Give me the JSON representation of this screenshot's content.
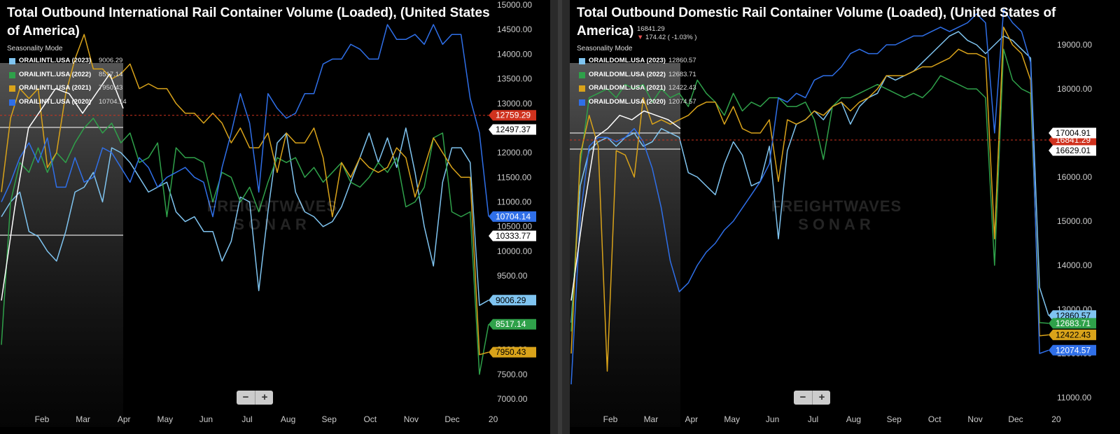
{
  "chart_data": [
    {
      "type": "line",
      "title": "Total Outbound International Rail Container Volume (Loaded), (United States of America)",
      "mode_label": "Seasonality Mode",
      "x_ticks": [
        "Feb",
        "Mar",
        "Apr",
        "May",
        "Jun",
        "Jul",
        "Aug",
        "Sep",
        "Oct",
        "Nov",
        "Dec",
        "20"
      ],
      "y_ticks": [
        "7000.00",
        "7500.00",
        "8000.00",
        "8500.00",
        "9000.00",
        "9500.00",
        "10000.00",
        "10500.00",
        "11000.00",
        "11500.00",
        "12000.00",
        "12500.00",
        "13000.00",
        "13500.00",
        "14000.00",
        "14500.00",
        "15000.00"
      ],
      "ylim": [
        7000,
        15000
      ],
      "series": [
        {
          "name": "ORAILINTL.USA (2023)",
          "value": "9006.29",
          "color": "#7fc4f0",
          "tag": "9006.29",
          "values": [
            10700,
            11000,
            11200,
            10400,
            10300,
            10000,
            9800,
            10400,
            11200,
            11300,
            11600,
            11000,
            12100,
            12000,
            11800,
            11500,
            11200,
            11300,
            11400,
            10800,
            10600,
            10700,
            10400,
            10400,
            9800,
            10200,
            11100,
            11000,
            9200,
            10800,
            12200,
            12400,
            11200,
            10800,
            10700,
            10500,
            10600,
            10900,
            11400,
            11900,
            12400,
            11800,
            12300,
            11700,
            12500,
            11600,
            10500,
            9700,
            11400,
            12100,
            12100,
            11800,
            8900,
            9006
          ]
        },
        {
          "name": "ORAILINTL.USA (2022)",
          "value": "8517.14",
          "color": "#2fa14a",
          "tag": "8517.14",
          "values": [
            8100,
            11000,
            11800,
            11600,
            12100,
            11600,
            12000,
            11800,
            12200,
            12500,
            12700,
            12400,
            12600,
            12200,
            12400,
            11800,
            11900,
            12200,
            10700,
            12100,
            11900,
            11900,
            11800,
            11000,
            11600,
            11500,
            11000,
            11300,
            10800,
            11400,
            11900,
            11800,
            11900,
            11500,
            11700,
            11400,
            11600,
            11800,
            11400,
            11300,
            11500,
            11800,
            11600,
            11900,
            10900,
            11000,
            11300,
            12300,
            12400,
            10800,
            10700,
            10800,
            7500,
            8517
          ]
        },
        {
          "name": "ORAILINTL.USA (2021)",
          "value": "7950.43",
          "color": "#d9a31a",
          "tag": "7950.43",
          "values": [
            11200,
            12700,
            13300,
            13100,
            13300,
            11700,
            12000,
            13200,
            13900,
            14400,
            13700,
            13700,
            13500,
            13600,
            13800,
            13300,
            13400,
            13300,
            13300,
            13000,
            12800,
            12800,
            12600,
            12800,
            12600,
            12200,
            12500,
            12100,
            12100,
            12400,
            11600,
            12400,
            12200,
            12200,
            12500,
            11900,
            10700,
            11800,
            11500,
            11900,
            11700,
            11600,
            11700,
            12100,
            11900,
            11100,
            11700,
            12300,
            12000,
            11700,
            11500,
            11500,
            7900,
            7950
          ]
        },
        {
          "name": "ORAILINTL.USA (2020)",
          "value": "10704.14",
          "color": "#2f6fe8",
          "tag": "10704.14",
          "values": [
            11000,
            11400,
            11900,
            12200,
            11800,
            12300,
            11300,
            11300,
            11900,
            11400,
            11500,
            12100,
            12000,
            11700,
            11400,
            11900,
            11700,
            11300,
            11500,
            11600,
            11700,
            11500,
            11400,
            10700,
            11700,
            12400,
            13200,
            12600,
            11200,
            13200,
            12900,
            12700,
            12800,
            13200,
            13200,
            13800,
            13900,
            13900,
            14200,
            14100,
            13900,
            13900,
            14600,
            14300,
            14300,
            14400,
            14200,
            14600,
            14200,
            14400,
            14400,
            13100,
            12400,
            10704
          ]
        },
        {
          "name": "",
          "value": "",
          "color": "#ffffff",
          "tag": "",
          "values": [
            9000,
            10900,
            12500,
            12900,
            13300,
            13200,
            12800,
            13200,
            13600,
            12900
          ]
        }
      ],
      "ref_line": {
        "value": "12759.29",
        "color": "#d0321e"
      },
      "extra_tags": [
        {
          "value": "12497.37"
        },
        {
          "value": "10333.77"
        }
      ],
      "watermark": [
        "FREIGHTWAVES",
        "SONAR"
      ]
    },
    {
      "type": "line",
      "title": "Total Outbound Domestic Rail Container Volume (Loaded), (United States of America)",
      "ticker": {
        "value": "16841.29",
        "change": "174.42 ( -1.03% )"
      },
      "mode_label": "Seasonality Mode",
      "x_ticks": [
        "Feb",
        "Mar",
        "Apr",
        "May",
        "Jun",
        "Jul",
        "Aug",
        "Sep",
        "Oct",
        "Nov",
        "Dec",
        "20"
      ],
      "y_ticks": [
        "11000.00",
        "12000.00",
        "13000.00",
        "14000.00",
        "15000.00",
        "16000.00",
        "17000.00",
        "18000.00",
        "19000.00"
      ],
      "ylim": [
        10800,
        19800
      ],
      "series": [
        {
          "name": "ORAILDOML.USA (2023)",
          "value": "12860.57",
          "color": "#7fc4f0",
          "tag": "12860.57",
          "values": [
            12700,
            15800,
            16600,
            16800,
            16900,
            16700,
            16900,
            17000,
            16700,
            16800,
            17100,
            17000,
            16900,
            16100,
            16000,
            15800,
            15600,
            16300,
            16800,
            16500,
            15800,
            15900,
            16700,
            14600,
            16600,
            17200,
            17300,
            17500,
            17300,
            17600,
            17700,
            17200,
            17600,
            17800,
            17900,
            18300,
            18200,
            18300,
            18400,
            18600,
            18800,
            19000,
            19200,
            19300,
            19100,
            19000,
            18800,
            19000,
            19200,
            19100,
            18900,
            18700,
            13500,
            12861
          ]
        },
        {
          "name": "ORAILDOML.USA (2022)",
          "value": "12683.71",
          "color": "#2fa14a",
          "tag": "12683.71",
          "values": [
            12500,
            16300,
            17800,
            17900,
            18000,
            17800,
            18100,
            18000,
            18100,
            17700,
            18000,
            17800,
            17900,
            17600,
            18200,
            17900,
            17700,
            17400,
            17900,
            17500,
            17700,
            17600,
            17800,
            17800,
            17600,
            17600,
            17700,
            17300,
            16400,
            17600,
            17800,
            17800,
            17900,
            18000,
            18100,
            18000,
            17900,
            17800,
            17900,
            17800,
            18000,
            18300,
            18200,
            18100,
            18000,
            18000,
            17800,
            14000,
            18900,
            18200,
            18000,
            17900,
            12700,
            12684
          ]
        },
        {
          "name": "ORAILDOML.USA (2021)",
          "value": "12422.43",
          "color": "#d9a31a",
          "tag": "12422.43",
          "values": [
            12000,
            16500,
            17400,
            16700,
            11600,
            16600,
            16500,
            16000,
            17800,
            17200,
            17300,
            17200,
            17300,
            17400,
            17600,
            17700,
            17700,
            17200,
            17600,
            17100,
            17000,
            17000,
            17300,
            15900,
            17300,
            17200,
            17300,
            17500,
            17400,
            17600,
            17700,
            17500,
            17700,
            17800,
            18000,
            18300,
            18300,
            18300,
            18400,
            18500,
            18500,
            18600,
            18700,
            18900,
            18800,
            18800,
            18700,
            14600,
            19400,
            19000,
            18800,
            18200,
            12400,
            12422
          ]
        },
        {
          "name": "ORAILDOML.USA (2020)",
          "value": "12074.57",
          "color": "#2f6fe8",
          "tag": "12074.57",
          "values": [
            11300,
            15100,
            16700,
            16900,
            16900,
            16800,
            16900,
            17100,
            16800,
            16200,
            15300,
            14100,
            13400,
            13600,
            14000,
            14300,
            14500,
            14800,
            15000,
            15300,
            15600,
            15900,
            16300,
            17800,
            17700,
            17900,
            17800,
            18200,
            18300,
            18300,
            18500,
            18800,
            18900,
            18800,
            18800,
            19000,
            19000,
            19100,
            19200,
            19200,
            19300,
            19400,
            19300,
            19400,
            19500,
            19700,
            19500,
            17000,
            19800,
            19500,
            19300,
            18600,
            12000,
            12075
          ]
        },
        {
          "name": "",
          "value": "",
          "color": "#ffffff",
          "tag": "",
          "values": [
            13200,
            15200,
            16900,
            17100,
            17400,
            17300,
            17500,
            17400,
            17300,
            17100
          ]
        }
      ],
      "ref_line": {
        "value": "16841.29",
        "color": "#d0321e"
      },
      "extra_tags": [
        {
          "value": "17004.91"
        },
        {
          "value": "16629.01"
        }
      ],
      "watermark": [
        "FREIGHTWAVES",
        "SONAR"
      ]
    }
  ]
}
